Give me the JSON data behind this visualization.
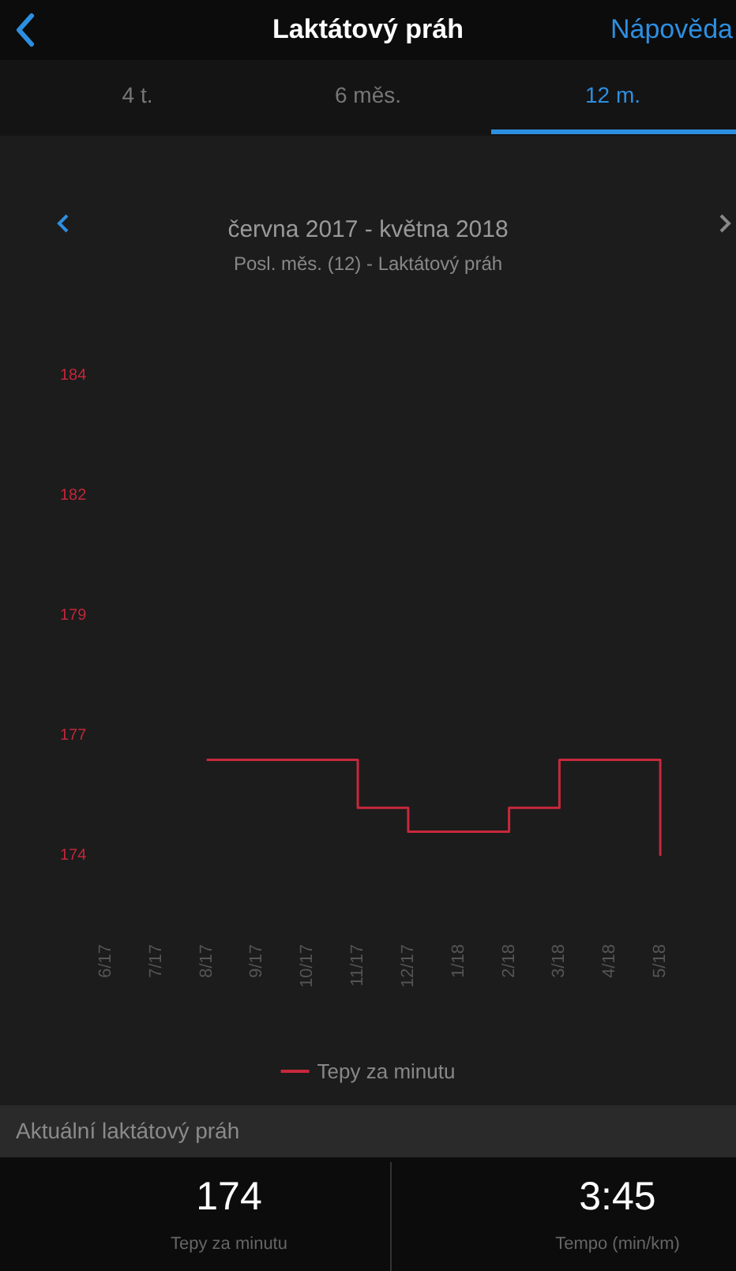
{
  "chart_data": {
    "type": "step",
    "title": "Laktátový práh",
    "subtitle": "června 2017 - května 2018",
    "annotations": [
      "Posl. měs. (12) - Laktátový práh",
      "4 t.",
      "6 měs.",
      "12 m.",
      "Nápověda",
      "Aktuální laktátový práh",
      "174",
      "Tepy za minutu",
      "3:45",
      "Tempo (min/km)"
    ],
    "categories": [
      "6/17",
      "7/17",
      "8/17",
      "9/17",
      "10/17",
      "11/17",
      "12/17",
      "1/18",
      "2/18",
      "3/18",
      "4/18",
      "5/18"
    ],
    "series": [
      {
        "name": "Tepy za minutu",
        "color": "#c8283c",
        "values": [
          null,
          null,
          176,
          176,
          176,
          175,
          174.5,
          174.5,
          175,
          176,
          176,
          174
        ]
      }
    ],
    "ylim": [
      174,
      184
    ],
    "yticks": [
      174,
      {
        "value": 176.5,
        "label": "177"
      },
      179,
      {
        "value": 181.5,
        "label": "182"
      },
      184
    ],
    "legend": "bottom"
  }
}
